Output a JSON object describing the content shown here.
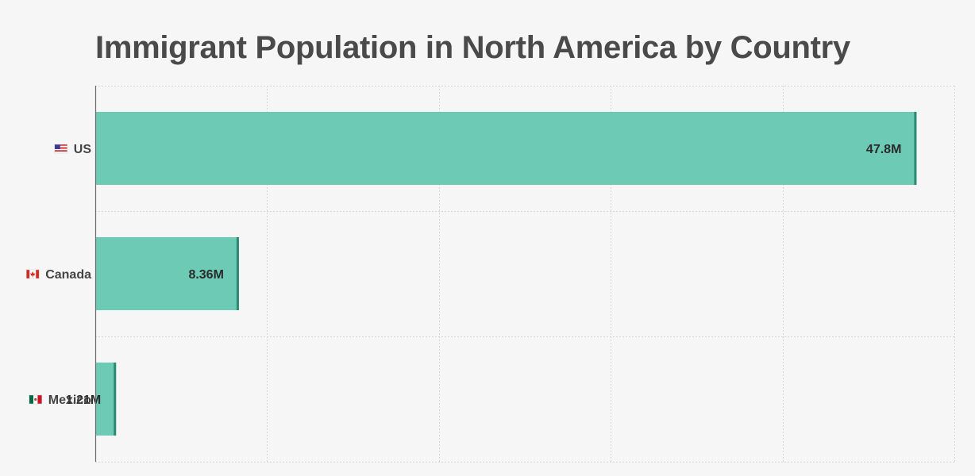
{
  "chart_data": {
    "type": "bar",
    "orientation": "horizontal",
    "title": "Immigrant Population in North America by Country",
    "categories": [
      "US",
      "Canada",
      "Mexico"
    ],
    "flag_icons": [
      "us-flag-icon",
      "canada-flag-icon",
      "mexico-flag-icon"
    ],
    "values": [
      47.8,
      8.36,
      1.21
    ],
    "value_labels": [
      "47.8M",
      "8.36M",
      "1.21M"
    ],
    "unit": "M",
    "xlim": [
      0,
      50
    ],
    "x_gridlines": [
      0,
      10,
      20,
      30,
      40,
      50
    ],
    "grid": true,
    "colors": {
      "bar_fill": "#6ccab5",
      "bar_edge": "#2c8a72",
      "title": "#4a4a4a",
      "background": "#f6f6f6"
    }
  }
}
